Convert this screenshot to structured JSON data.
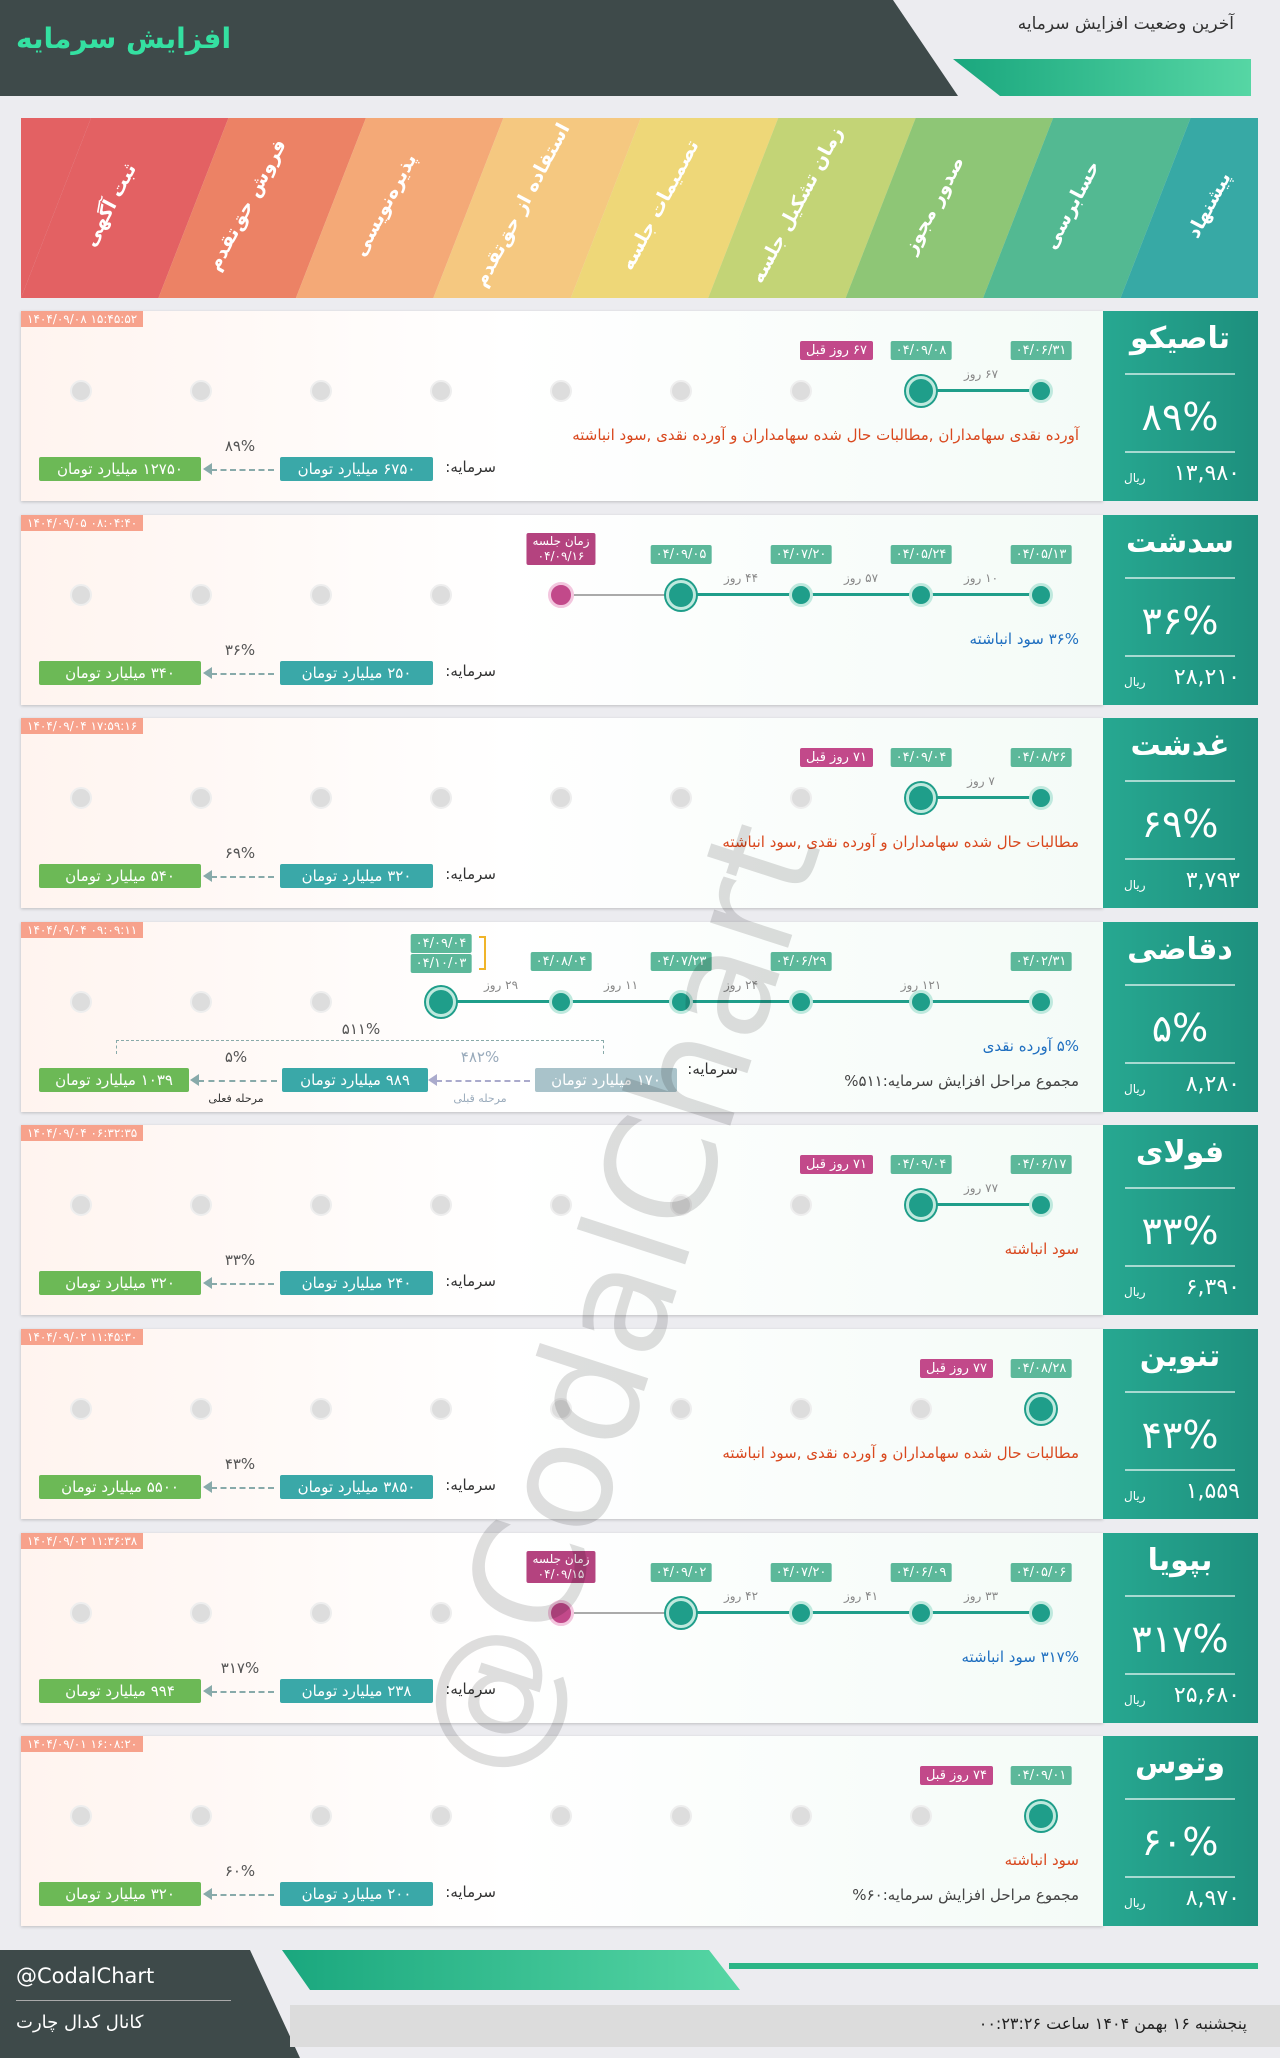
{
  "header": {
    "title": "افزایش سرمایه",
    "subtitle": "آخرین وضعیت افزایش سرمایه"
  },
  "stages": [
    "ثبت آگهی",
    "فروش حق‌تقدم",
    "پذیره‌نویسی",
    "استفاده از حق‌تقدم",
    "تصمیمات جلسه",
    "زمان تشکیل جلسه",
    "صدور مجوز",
    "حسابرسی",
    "پیشنهاد"
  ],
  "companies": [
    {
      "name": "تاصیکو",
      "percent": "۸۹%",
      "price": "۱۳,۹۸۰",
      "price_unit": "ریال",
      "timestamp": "۱۴۰۴/۰۹/۰۸ ۱۵:۴۵:۵۲",
      "steps": [
        "۰۴/۰۶/۳۱",
        "۰۴/۰۹/۰۸"
      ],
      "gaps": [
        "۶۷ روز"
      ],
      "ago": "۶۷ روز قبل",
      "note": "آورده نقدی سهامداران ,مطالبات حال شده سهامداران و آورده نقدی ,سود انباشته",
      "note_color": "#d9481e",
      "capital_label": "سرمایه:",
      "before": "۶۷۵۰ میلیارد تومان",
      "increase": "۸۹%",
      "after": "۱۲۷۵۰ میلیارد تومان"
    },
    {
      "name": "سدشت",
      "percent": "۳۶%",
      "price": "۲۸,۲۱۰",
      "price_unit": "ریال",
      "timestamp": "۱۴۰۴/۰۹/۰۵ ۰۸:۰۴:۴۰",
      "steps": [
        "۰۴/۰۵/۱۳",
        "۰۴/۰۵/۲۴",
        "۰۴/۰۷/۲۰",
        "۰۴/۰۹/۰۵"
      ],
      "gaps": [
        "۱۰ روز",
        "۵۷ روز",
        "۴۴ روز"
      ],
      "session": {
        "label": "زمان جلسه",
        "date": "۰۴/۰۹/۱۶"
      },
      "note": "۳۶% سود انباشته",
      "note_color": "#1f6fc0",
      "capital_label": "سرمایه:",
      "before": "۲۵۰ میلیارد تومان",
      "increase": "۳۶%",
      "after": "۳۴۰ میلیارد تومان"
    },
    {
      "name": "غدشت",
      "percent": "۶۹%",
      "price": "۳,۷۹۳",
      "price_unit": "ریال",
      "timestamp": "۱۴۰۴/۰۹/۰۴ ۱۷:۵۹:۱۶",
      "steps": [
        "۰۴/۰۸/۲۶",
        "۰۴/۰۹/۰۴"
      ],
      "gaps": [
        "۷ روز"
      ],
      "ago": "۷۱ روز قبل",
      "note": "مطالبات حال شده سهامداران و آورده نقدی ,سود انباشته",
      "note_color": "#d9481e",
      "capital_label": "سرمایه:",
      "before": "۳۲۰ میلیارد تومان",
      "increase": "۶۹%",
      "after": "۵۴۰ میلیارد تومان"
    },
    {
      "name": "دقاضی",
      "percent": "۵%",
      "price": "۸,۲۸۰",
      "price_unit": "ریال",
      "timestamp": "۱۴۰۴/۰۹/۰۴ ۰۹:۰۹:۱۱",
      "steps": [
        "۰۴/۰۲/۳۱",
        null,
        "۰۴/۰۶/۲۹",
        "۰۴/۰۷/۲۳",
        "۰۴/۰۸/۰۴",
        "۰۴/۰۹/۰۴"
      ],
      "next_date": "۰۴/۱۰/۰۳",
      "gaps": [
        "۱۲۱ روز",
        "۲۴ روز",
        "۱۱ روز",
        "۲۹ روز"
      ],
      "note": "۵% آورده نقدی",
      "note_color": "#1f6fc0",
      "total": "مجموع مراحل افزایش سرمایه:۵۱۱%",
      "capital_label": "سرمایه:",
      "prior": {
        "before": "۱۷۰ میلیارد تومان",
        "label": "مرحله قبلی",
        "increase": "۴۸۲%"
      },
      "current_label": "مرحله فعلی",
      "total_increase": "۵۱۱%",
      "before": "۹۸۹ میلیارد تومان",
      "increase": "۵%",
      "after": "۱۰۳۹ میلیارد تومان"
    },
    {
      "name": "فولای",
      "percent": "۳۳%",
      "price": "۶,۳۹۰",
      "price_unit": "ریال",
      "timestamp": "۱۴۰۴/۰۹/۰۴ ۰۶:۳۲:۳۵",
      "steps": [
        "۰۴/۰۶/۱۷",
        "۰۴/۰۹/۰۴"
      ],
      "gaps": [
        "۷۷ روز"
      ],
      "ago": "۷۱ روز قبل",
      "note": "سود انباشته",
      "note_color": "#d9481e",
      "capital_label": "سرمایه:",
      "before": "۲۴۰ میلیارد تومان",
      "increase": "۳۳%",
      "after": "۳۲۰ میلیارد تومان"
    },
    {
      "name": "تنوین",
      "percent": "۴۳%",
      "price": "۱,۵۵۹",
      "price_unit": "ریال",
      "timestamp": "۱۴۰۴/۰۹/۰۲ ۱۱:۴۵:۳۰",
      "steps": [
        "۰۴/۰۸/۲۸"
      ],
      "gaps": [],
      "ago": "۷۷ روز قبل",
      "note": "مطالبات حال شده سهامداران و آورده نقدی ,سود انباشته",
      "note_color": "#d9481e",
      "capital_label": "سرمایه:",
      "before": "۳۸۵۰ میلیارد تومان",
      "increase": "۴۳%",
      "after": "۵۵۰۰ میلیارد تومان"
    },
    {
      "name": "بپویا",
      "percent": "۳۱۷%",
      "price": "۲۵,۶۸۰",
      "price_unit": "ریال",
      "timestamp": "۱۴۰۴/۰۹/۰۲ ۱۱:۳۶:۳۸",
      "steps": [
        "۰۴/۰۵/۰۶",
        "۰۴/۰۶/۰۹",
        "۰۴/۰۷/۲۰",
        "۰۴/۰۹/۰۲"
      ],
      "gaps": [
        "۳۳ روز",
        "۴۱ روز",
        "۴۲ روز"
      ],
      "session": {
        "label": "زمان جلسه",
        "date": "۰۴/۰۹/۱۵"
      },
      "note": "۳۱۷% سود انباشته",
      "note_color": "#1f6fc0",
      "capital_label": "سرمایه:",
      "before": "۲۳۸ میلیارد تومان",
      "increase": "۳۱۷%",
      "after": "۹۹۴ میلیارد تومان"
    },
    {
      "name": "وتوس",
      "percent": "۶۰%",
      "price": "۸,۹۷۰",
      "price_unit": "ریال",
      "timestamp": "۱۴۰۴/۰۹/۰۱ ۱۶:۰۸:۲۰",
      "steps": [
        "۰۴/۰۹/۰۱"
      ],
      "gaps": [],
      "ago": "۷۴ روز قبل",
      "note": "سود انباشته",
      "note_color": "#d9481e",
      "total": "مجموع مراحل افزایش سرمایه:۶۰%",
      "capital_label": "سرمایه:",
      "before": "۲۰۰ میلیارد تومان",
      "increase": "۶۰%",
      "after": "۳۲۰ میلیارد تومان"
    }
  ],
  "watermark": "@CodalChart",
  "footer": {
    "handle": "@CodalChart",
    "channel": "کانال کدال چارت",
    "date": "پنجشنبه ۱۶ بهمن ۱۴۰۴ ساعت ۰۰:۲۳:۲۶"
  }
}
